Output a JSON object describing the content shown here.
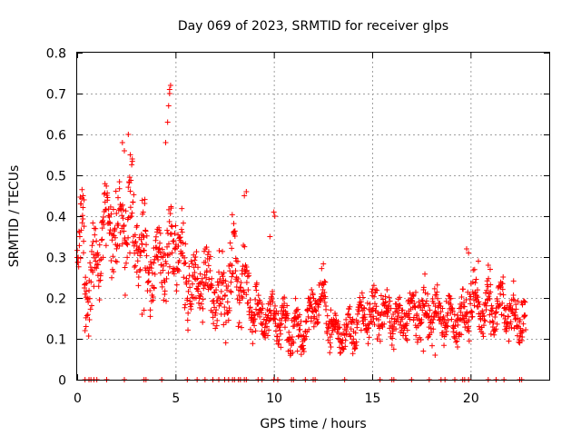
{
  "chart_data": {
    "type": "scatter",
    "title": "Day 069 of 2023, SRMTID for receiver glps",
    "xlabel": "GPS time / hours",
    "ylabel": "SRMTID / TECUs",
    "xlim": [
      0,
      24
    ],
    "ylim": [
      0,
      0.8
    ],
    "xticks": [
      0,
      5,
      10,
      15,
      20
    ],
    "yticks": [
      0,
      0.1,
      0.2,
      0.3,
      0.4,
      0.5,
      0.6,
      0.7,
      0.8
    ],
    "xtick_labels": [
      "0",
      "5",
      "10",
      "15",
      "20"
    ],
    "ytick_labels": [
      "0",
      "0.1",
      "0.2",
      "0.3",
      "0.4",
      "0.5",
      "0.6",
      "0.7",
      "0.8"
    ],
    "grid": true,
    "marker": "+",
    "series": [
      {
        "name": "SRMTID",
        "color": "#ff0000",
        "trend": {
          "x": [
            0.0,
            0.3,
            0.6,
            1.0,
            1.5,
            2.0,
            2.5,
            3.0,
            3.5,
            4.0,
            4.5,
            5.0,
            5.5,
            6.0,
            6.5,
            7.0,
            7.5,
            8.0,
            8.5,
            9.0,
            9.5,
            10.0,
            10.5,
            11.0,
            11.5,
            12.0,
            12.5,
            13.0,
            13.5,
            14.0,
            14.5,
            15.0,
            15.5,
            16.0,
            16.5,
            17.0,
            17.5,
            18.0,
            18.5,
            19.0,
            19.5,
            20.0,
            20.5,
            21.0,
            21.5,
            22.0,
            22.5,
            22.8
          ],
          "y": [
            0.3,
            0.35,
            0.2,
            0.3,
            0.38,
            0.35,
            0.42,
            0.36,
            0.3,
            0.28,
            0.3,
            0.32,
            0.26,
            0.22,
            0.26,
            0.22,
            0.2,
            0.28,
            0.22,
            0.18,
            0.15,
            0.15,
            0.14,
            0.12,
            0.12,
            0.18,
            0.2,
            0.12,
            0.11,
            0.13,
            0.15,
            0.16,
            0.17,
            0.14,
            0.15,
            0.16,
            0.18,
            0.16,
            0.17,
            0.15,
            0.14,
            0.2,
            0.17,
            0.16,
            0.18,
            0.16,
            0.15,
            0.14
          ],
          "spread": [
            0.05,
            0.1,
            0.08,
            0.08,
            0.08,
            0.1,
            0.12,
            0.09,
            0.1,
            0.08,
            0.1,
            0.1,
            0.08,
            0.07,
            0.08,
            0.07,
            0.07,
            0.1,
            0.07,
            0.06,
            0.05,
            0.05,
            0.06,
            0.05,
            0.05,
            0.05,
            0.05,
            0.04,
            0.04,
            0.05,
            0.05,
            0.05,
            0.05,
            0.05,
            0.05,
            0.05,
            0.06,
            0.05,
            0.05,
            0.05,
            0.05,
            0.06,
            0.06,
            0.05,
            0.05,
            0.05,
            0.05,
            0.05
          ]
        },
        "extra_points": [
          {
            "x": 2.3,
            "y": 0.58
          },
          {
            "x": 2.4,
            "y": 0.56
          },
          {
            "x": 2.6,
            "y": 0.6
          },
          {
            "x": 2.7,
            "y": 0.55
          },
          {
            "x": 2.8,
            "y": 0.54
          },
          {
            "x": 4.5,
            "y": 0.58
          },
          {
            "x": 4.6,
            "y": 0.63
          },
          {
            "x": 4.65,
            "y": 0.67
          },
          {
            "x": 4.7,
            "y": 0.71
          },
          {
            "x": 4.75,
            "y": 0.72
          },
          {
            "x": 4.7,
            "y": 0.7
          },
          {
            "x": 8.5,
            "y": 0.45
          },
          {
            "x": 8.6,
            "y": 0.46
          },
          {
            "x": 10.0,
            "y": 0.41
          },
          {
            "x": 10.05,
            "y": 0.4
          },
          {
            "x": 9.8,
            "y": 0.35
          },
          {
            "x": 19.8,
            "y": 0.32
          },
          {
            "x": 19.9,
            "y": 0.31
          },
          {
            "x": 20.4,
            "y": 0.29
          },
          {
            "x": 20.9,
            "y": 0.28
          },
          {
            "x": 21.0,
            "y": 0.27
          },
          {
            "x": 3.3,
            "y": 0.16
          },
          {
            "x": 3.4,
            "y": 0.17
          },
          {
            "x": 0.3,
            "y": 0.45
          },
          {
            "x": 0.35,
            "y": 0.44
          },
          {
            "x": 0.4,
            "y": 0.12
          },
          {
            "x": 0.45,
            "y": 0.13
          },
          {
            "x": 11.2,
            "y": 0.07
          },
          {
            "x": 12.9,
            "y": 0.08
          },
          {
            "x": 18.2,
            "y": 0.06
          },
          {
            "x": 17.6,
            "y": 0.07
          }
        ],
        "baseline_hours": [
          0.4,
          0.6,
          0.7,
          0.85,
          1.0,
          1.5,
          2.4,
          3.4,
          3.5,
          4.3,
          5.6,
          6.1,
          6.5,
          6.9,
          7.2,
          7.5,
          7.7,
          7.9,
          8.0,
          8.2,
          8.3,
          8.5,
          8.6,
          9.2,
          9.4,
          10.0,
          10.2,
          10.9,
          11.0,
          11.6,
          12.0,
          12.1,
          13.6,
          15.4,
          16.0,
          16.1,
          17.0,
          17.9,
          18.5,
          18.7,
          19.2,
          19.6,
          19.7,
          19.9,
          20.9,
          21.3,
          21.7,
          22.5,
          22.6
        ]
      }
    ]
  }
}
